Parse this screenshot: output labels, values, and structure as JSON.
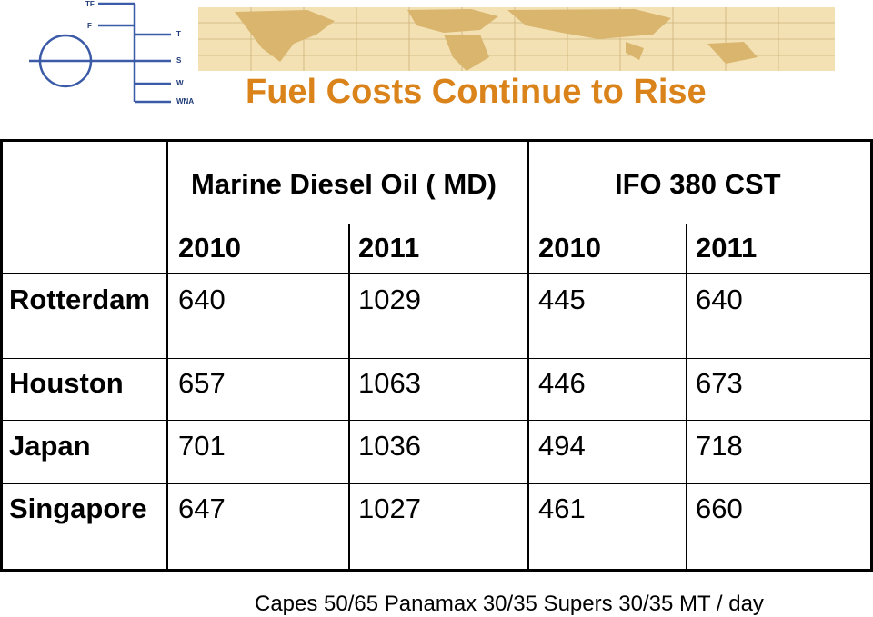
{
  "logo": {
    "letters": [
      "TF",
      "F",
      "T",
      "S",
      "W",
      "WNA"
    ]
  },
  "title": "Fuel Costs Continue to Rise",
  "table": {
    "group_headers": [
      "Marine Diesel Oil ( MD)",
      "IFO 380 CST"
    ],
    "years": [
      "2010",
      "2011",
      "2010",
      "2011"
    ],
    "rows": [
      {
        "port": "Rotterdam",
        "values": [
          "640",
          "1029",
          "445",
          "640"
        ]
      },
      {
        "port": "Houston",
        "values": [
          "657",
          "1063",
          "446",
          "673"
        ]
      },
      {
        "port": "Japan",
        "values": [
          "701",
          "1036",
          "494",
          "718"
        ]
      },
      {
        "port": "Singapore",
        "values": [
          "647",
          "1027",
          "461",
          "660"
        ]
      }
    ]
  },
  "footer": "Capes 50/65 Panamax 30/35 Supers 30/35 MT / day",
  "colors": {
    "title": "#d9831a",
    "map": "#f3e1b3",
    "logo": "#1f3a78"
  }
}
